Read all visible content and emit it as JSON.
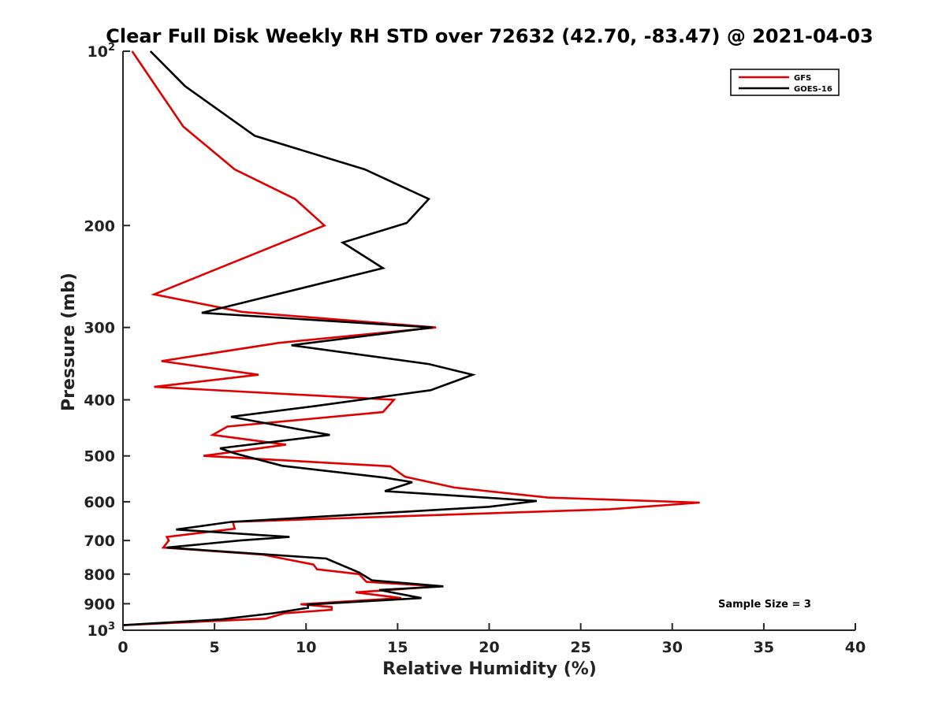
{
  "chart_data": {
    "type": "line",
    "title": "Clear Full Disk Weekly RH STD over 72632 (42.70, -83.47) @ 2021-04-03",
    "xlabel": "Relative Humidity (%)",
    "ylabel": "Pressure (mb)",
    "xlim": [
      0,
      40
    ],
    "ylim": [
      100,
      1000
    ],
    "y_scale": "log",
    "y_reversed": true,
    "grid": false,
    "legend_position": "top-right",
    "x_ticks": [
      "0",
      "5",
      "10",
      "15",
      "20",
      "25",
      "30",
      "35",
      "40"
    ],
    "y_ticks": [
      {
        "value": 100,
        "base": "10",
        "exp": "2"
      },
      {
        "value": 200,
        "label": "200"
      },
      {
        "value": 300,
        "label": "300"
      },
      {
        "value": 400,
        "label": "400"
      },
      {
        "value": 500,
        "label": "500"
      },
      {
        "value": 600,
        "label": "600"
      },
      {
        "value": 700,
        "label": "700"
      },
      {
        "value": 800,
        "label": "800"
      },
      {
        "value": 900,
        "label": "900"
      },
      {
        "value": 1000,
        "base": "10",
        "exp": "3"
      }
    ],
    "series": [
      {
        "name": "GFS",
        "color": "#e00000",
        "points": [
          [
            0.5,
            100
          ],
          [
            1.8,
            115
          ],
          [
            3.3,
            135
          ],
          [
            6.1,
            160
          ],
          [
            9.4,
            180
          ],
          [
            11.0,
            200
          ],
          [
            1.7,
            263
          ],
          [
            6.5,
            282
          ],
          [
            17.1,
            300
          ],
          [
            8.5,
            319
          ],
          [
            2.1,
            343
          ],
          [
            7.4,
            362
          ],
          [
            1.7,
            380
          ],
          [
            14.8,
            400
          ],
          [
            14.2,
            420
          ],
          [
            5.7,
            445
          ],
          [
            4.9,
            460
          ],
          [
            8.9,
            478
          ],
          [
            4.4,
            500
          ],
          [
            14.6,
            521
          ],
          [
            15.4,
            543
          ],
          [
            18.1,
            567
          ],
          [
            23.2,
            590
          ],
          [
            31.5,
            602
          ],
          [
            26.6,
            618
          ],
          [
            6.0,
            650
          ],
          [
            6.1,
            668
          ],
          [
            2.4,
            690
          ],
          [
            2.5,
            700
          ],
          [
            2.2,
            720
          ],
          [
            7.6,
            740
          ],
          [
            10.4,
            770
          ],
          [
            10.6,
            785
          ],
          [
            12.9,
            800
          ],
          [
            13.3,
            825
          ],
          [
            17.3,
            840
          ],
          [
            12.7,
            860
          ],
          [
            15.2,
            880
          ],
          [
            9.7,
            902
          ],
          [
            11.4,
            912
          ],
          [
            11.4,
            922
          ],
          [
            8.8,
            935
          ],
          [
            7.8,
            955
          ],
          [
            0.0,
            980
          ]
        ]
      },
      {
        "name": "GOES-16",
        "color": "#000000",
        "points": [
          [
            1.5,
            100
          ],
          [
            3.4,
            115
          ],
          [
            7.2,
            140
          ],
          [
            13.2,
            160
          ],
          [
            16.7,
            180
          ],
          [
            15.5,
            198
          ],
          [
            12.0,
            214
          ],
          [
            14.2,
            237
          ],
          [
            4.3,
            283
          ],
          [
            16.9,
            300
          ],
          [
            9.2,
            322
          ],
          [
            16.7,
            347
          ],
          [
            19.1,
            362
          ],
          [
            16.8,
            385
          ],
          [
            10.5,
            410
          ],
          [
            5.9,
            428
          ],
          [
            11.3,
            460
          ],
          [
            5.3,
            485
          ],
          [
            6.1,
            495
          ],
          [
            8.7,
            520
          ],
          [
            14.3,
            545
          ],
          [
            15.8,
            555
          ],
          [
            14.3,
            575
          ],
          [
            22.6,
            598
          ],
          [
            20.0,
            612
          ],
          [
            5.9,
            650
          ],
          [
            2.9,
            670
          ],
          [
            7.5,
            685
          ],
          [
            9.1,
            690
          ],
          [
            6.4,
            700
          ],
          [
            2.4,
            720
          ],
          [
            11.1,
            752
          ],
          [
            12.9,
            795
          ],
          [
            13.6,
            820
          ],
          [
            17.5,
            840
          ],
          [
            14.0,
            852
          ],
          [
            16.3,
            880
          ],
          [
            10.1,
            903
          ],
          [
            10.1,
            915
          ],
          [
            8.2,
            935
          ],
          [
            5.3,
            958
          ],
          [
            0.0,
            980
          ]
        ]
      }
    ],
    "annotation": "Sample Size = 3"
  }
}
